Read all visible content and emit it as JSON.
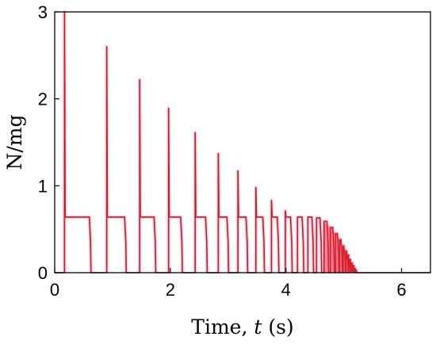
{
  "chart_data": {
    "type": "line",
    "title": "",
    "xlabel": {
      "prefix": "Time, ",
      "symbol": "t",
      "suffix": " (s)"
    },
    "ylabel": "N/mg",
    "xlim": [
      0,
      6.5
    ],
    "ylim": [
      0,
      3
    ],
    "xticks": [
      "0",
      "2",
      "4",
      "6"
    ],
    "yticks": [
      "0",
      "1",
      "2",
      "3"
    ],
    "grid": false,
    "colors": {
      "series": "#b3261a",
      "glow": "#ff9fd2",
      "envelope": "#ff1f3a"
    },
    "series": [
      {
        "plateau_value": 0.64,
        "impacts": [
          {
            "t": 0.17,
            "peak": 3.0,
            "contact_end": 0.62
          },
          {
            "t": 0.9,
            "peak": 2.6,
            "contact_end": 1.23
          },
          {
            "t": 1.47,
            "peak": 2.22,
            "contact_end": 1.74
          },
          {
            "t": 1.97,
            "peak": 1.89,
            "contact_end": 2.2
          },
          {
            "t": 2.43,
            "peak": 1.61,
            "contact_end": 2.63
          },
          {
            "t": 2.83,
            "peak": 1.37,
            "contact_end": 3.0
          },
          {
            "t": 3.17,
            "peak": 1.17,
            "contact_end": 3.33
          },
          {
            "t": 3.48,
            "peak": 0.98,
            "contact_end": 3.62
          },
          {
            "t": 3.75,
            "peak": 0.83,
            "contact_end": 3.87
          },
          {
            "t": 3.99,
            "peak": 0.71,
            "contact_end": 4.1
          },
          {
            "t": 4.2,
            "peak": 0.64,
            "contact_end": 4.3
          },
          {
            "t": 4.38,
            "peak": 0.64,
            "contact_end": 4.47
          },
          {
            "t": 4.53,
            "peak": 0.63,
            "contact_end": 4.61
          },
          {
            "t": 4.66,
            "peak": 0.59,
            "contact_end": 4.73
          },
          {
            "t": 4.77,
            "peak": 0.52,
            "contact_end": 4.83
          },
          {
            "t": 4.86,
            "peak": 0.45,
            "contact_end": 4.91
          },
          {
            "t": 4.93,
            "peak": 0.38,
            "contact_end": 4.97
          },
          {
            "t": 4.99,
            "peak": 0.31,
            "contact_end": 5.02
          },
          {
            "t": 5.04,
            "peak": 0.25,
            "contact_end": 5.07
          },
          {
            "t": 5.08,
            "peak": 0.2,
            "contact_end": 5.1
          },
          {
            "t": 5.11,
            "peak": 0.15,
            "contact_end": 5.13
          },
          {
            "t": 5.14,
            "peak": 0.11,
            "contact_end": 5.16
          },
          {
            "t": 5.17,
            "peak": 0.08,
            "contact_end": 5.18
          },
          {
            "t": 5.19,
            "peak": 0.05,
            "contact_end": 5.2
          },
          {
            "t": 5.21,
            "peak": 0.03,
            "contact_end": 5.22
          }
        ]
      }
    ]
  }
}
